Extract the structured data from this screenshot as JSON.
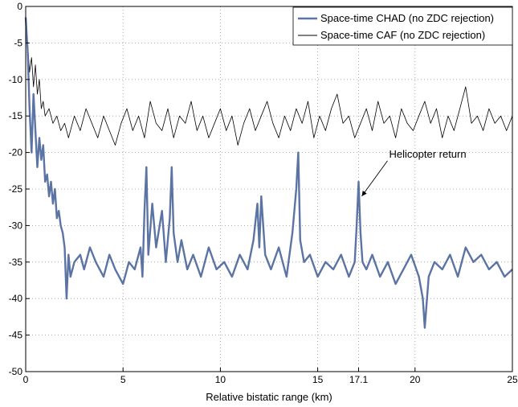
{
  "chart_data": {
    "type": "line",
    "title": "",
    "xlabel": "Relative bistatic range (km)",
    "ylabel": "",
    "xlim": [
      0,
      25
    ],
    "ylim": [
      -50,
      0
    ],
    "xticks": [
      0,
      5,
      10,
      15,
      17.1,
      20,
      25
    ],
    "xtick_labels": [
      "0",
      "5",
      "10",
      "15",
      "17.1",
      "20",
      "25"
    ],
    "yticks": [
      0,
      -5,
      -10,
      -15,
      -20,
      -25,
      -30,
      -35,
      -40,
      -45,
      -50
    ],
    "ytick_labels": [
      "0",
      "-5",
      "-10",
      "-15",
      "-20",
      "-25",
      "-30",
      "-35",
      "-40",
      "-45",
      "-50"
    ],
    "grid": true,
    "legend_position": "top-right",
    "series": [
      {
        "name": "Space-time CHAD (no ZDC rejection)",
        "color": "#5b74a4",
        "style": "thick",
        "x": [
          0,
          0.1,
          0.2,
          0.3,
          0.4,
          0.5,
          0.6,
          0.7,
          0.8,
          0.9,
          1.0,
          1.1,
          1.2,
          1.3,
          1.4,
          1.5,
          1.6,
          1.7,
          1.8,
          1.9,
          2.0,
          2.1,
          2.2,
          2.3,
          2.5,
          2.8,
          3.0,
          3.3,
          3.6,
          4.0,
          4.3,
          4.6,
          5.0,
          5.3,
          5.6,
          5.9,
          6.0,
          6.1,
          6.2,
          6.3,
          6.5,
          6.7,
          7.0,
          7.2,
          7.4,
          7.5,
          7.6,
          7.8,
          8.0,
          8.3,
          8.6,
          9.0,
          9.4,
          9.8,
          10.2,
          10.6,
          11.0,
          11.4,
          11.7,
          11.9,
          12.0,
          12.1,
          12.3,
          12.6,
          13.0,
          13.4,
          13.7,
          13.9,
          14.0,
          14.1,
          14.3,
          14.6,
          15.0,
          15.4,
          15.8,
          16.2,
          16.6,
          16.9,
          17.0,
          17.1,
          17.2,
          17.3,
          17.5,
          17.8,
          18.2,
          18.6,
          19.0,
          19.4,
          19.8,
          20.2,
          20.4,
          20.5,
          20.7,
          21.0,
          21.4,
          21.8,
          22.2,
          22.6,
          23.0,
          23.4,
          23.8,
          24.2,
          24.6,
          25.0
        ],
        "y": [
          -1.5,
          -6,
          -14,
          -20,
          -12,
          -17,
          -22,
          -18,
          -21,
          -19,
          -24,
          -23,
          -26,
          -24,
          -27,
          -25,
          -29,
          -28,
          -30,
          -31,
          -33,
          -40,
          -34,
          -37,
          -35,
          -34,
          -36,
          -33,
          -35,
          -37,
          -34,
          -36,
          -38,
          -35,
          -36,
          -33,
          -37,
          -28,
          -22,
          -34,
          -27,
          -33,
          -28,
          -35,
          -29,
          -22,
          -31,
          -35,
          -32,
          -36,
          -34,
          -37,
          -33,
          -36,
          -35,
          -37,
          -34,
          -36,
          -32,
          -27,
          -33,
          -26,
          -34,
          -36,
          -33,
          -37,
          -31,
          -25,
          -20,
          -32,
          -35,
          -34,
          -37,
          -35,
          -36,
          -34,
          -37,
          -35,
          -30,
          -24,
          -31,
          -35,
          -36,
          -34,
          -37,
          -35,
          -38,
          -36,
          -34,
          -37,
          -40,
          -44,
          -37,
          -35,
          -36,
          -34,
          -37,
          -33,
          -35,
          -34,
          -36,
          -35,
          -37,
          -36
        ]
      },
      {
        "name": "Space-time CAF (no ZDC rejection)",
        "color": "#000000",
        "style": "thin",
        "x": [
          0,
          0.1,
          0.2,
          0.3,
          0.4,
          0.5,
          0.6,
          0.7,
          0.8,
          0.9,
          1.0,
          1.2,
          1.4,
          1.6,
          1.8,
          2.0,
          2.2,
          2.5,
          2.8,
          3.1,
          3.4,
          3.7,
          4.0,
          4.3,
          4.6,
          4.9,
          5.2,
          5.5,
          5.8,
          6.1,
          6.4,
          6.7,
          7.0,
          7.3,
          7.6,
          7.9,
          8.2,
          8.5,
          8.8,
          9.1,
          9.4,
          9.7,
          10.0,
          10.3,
          10.6,
          10.9,
          11.2,
          11.5,
          11.8,
          12.1,
          12.4,
          12.7,
          13.0,
          13.3,
          13.6,
          13.9,
          14.2,
          14.5,
          14.8,
          15.1,
          15.4,
          15.7,
          16.0,
          16.3,
          16.6,
          16.9,
          17.2,
          17.5,
          17.8,
          18.1,
          18.4,
          18.7,
          19.0,
          19.3,
          19.6,
          19.9,
          20.2,
          20.5,
          20.8,
          21.1,
          21.4,
          21.7,
          22.0,
          22.3,
          22.6,
          22.9,
          23.2,
          23.5,
          23.8,
          24.1,
          24.4,
          24.7,
          25.0
        ],
        "y": [
          -2,
          -5,
          -9,
          -7,
          -11,
          -8,
          -12,
          -10,
          -14,
          -13,
          -15,
          -14,
          -16,
          -15,
          -17,
          -16,
          -18,
          -15,
          -17,
          -14,
          -16,
          -18,
          -15,
          -17,
          -19,
          -16,
          -14,
          -17,
          -15,
          -18,
          -13,
          -16,
          -17,
          -14,
          -18,
          -15,
          -16,
          -13,
          -17,
          -15,
          -18,
          -16,
          -14,
          -17,
          -15,
          -19,
          -16,
          -14,
          -17,
          -15,
          -13,
          -16,
          -18,
          -15,
          -17,
          -14,
          -16,
          -13,
          -18,
          -15,
          -17,
          -14,
          -12,
          -16,
          -15,
          -18,
          -16,
          -14,
          -17,
          -13,
          -16,
          -15,
          -18,
          -14,
          -16,
          -17,
          -15,
          -13,
          -16,
          -14,
          -18,
          -15,
          -17,
          -14,
          -11,
          -16,
          -15,
          -17,
          -14,
          -16,
          -15,
          -17,
          -15
        ]
      }
    ],
    "annotations": [
      {
        "text": "Helicopter return",
        "x": 17.1,
        "y": -24
      }
    ]
  }
}
